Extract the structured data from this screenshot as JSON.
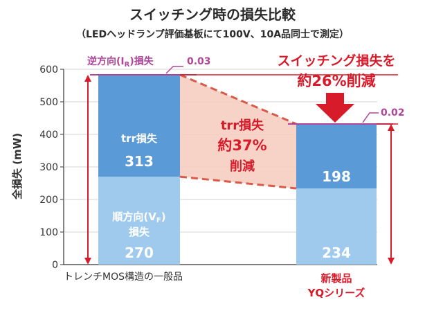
{
  "header": {
    "title": "スイッチング時の損失比較",
    "subtitle": "（LEDヘッドランプ評価基板にて100V、10A品同士で測定）"
  },
  "chart_data": {
    "type": "bar",
    "stacked": true,
    "categories": [
      "トレンチMOS構造の一般品",
      "新製品YQシリーズ"
    ],
    "category_lines": [
      [
        "トレンチMOS構造の一般品"
      ],
      [
        "新製品",
        "YQシリーズ"
      ]
    ],
    "series": [
      {
        "name": "順方向(VF)損失",
        "name_lines": [
          "順方向(V",
          "F",
          ")",
          "損失"
        ],
        "values": [
          270,
          234
        ],
        "color": "#9fcaee"
      },
      {
        "name": "trr損失",
        "values": [
          313,
          198
        ],
        "color": "#5a9ad6"
      },
      {
        "name": "逆方向(IR)損失",
        "values": [
          0.03,
          0.02
        ],
        "color": "#b0469a"
      }
    ],
    "ylabel": "全損失 (mW)",
    "ylim": [
      0,
      600
    ],
    "yticks": [
      0,
      100,
      200,
      300,
      400,
      500,
      600
    ],
    "grid": true,
    "annotations": {
      "reverse_loss_label": "逆方向(I",
      "reverse_loss_sub": "R",
      "reverse_loss_tail": ")損失",
      "reverse_value_1": "0.03",
      "reverse_value_2": "0.02",
      "trr_reduction": [
        "trr損失",
        "約37%",
        "削減"
      ],
      "switching_reduction": [
        "スイッチング損失を",
        "約26%削減"
      ]
    }
  }
}
